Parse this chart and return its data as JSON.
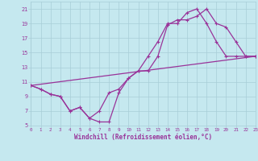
{
  "xlabel": "Windchill (Refroidissement éolien,°C)",
  "bg_color": "#c5e8ef",
  "grid_color": "#a8cdd8",
  "line_color": "#993399",
  "xlim": [
    0,
    23
  ],
  "ylim": [
    5,
    22
  ],
  "yticks": [
    5,
    7,
    9,
    11,
    13,
    15,
    17,
    19,
    21
  ],
  "xticks": [
    0,
    1,
    2,
    3,
    4,
    5,
    6,
    7,
    8,
    9,
    10,
    11,
    12,
    13,
    14,
    15,
    16,
    17,
    18,
    19,
    20,
    21,
    22,
    23
  ],
  "line1_x": [
    0,
    1,
    2,
    3,
    4,
    5,
    6,
    7,
    8,
    9,
    10,
    11,
    12,
    13,
    14,
    15,
    16,
    17,
    18,
    19,
    20,
    21,
    22,
    23
  ],
  "line1_y": [
    10.5,
    10.0,
    9.3,
    9.0,
    7.0,
    7.5,
    6.0,
    5.5,
    5.5,
    9.5,
    11.5,
    12.5,
    12.5,
    14.5,
    18.8,
    19.5,
    19.5,
    20.0,
    21.0,
    19.0,
    18.5,
    16.5,
    14.5,
    14.5
  ],
  "line2_x": [
    0,
    1,
    2,
    3,
    4,
    5,
    6,
    7,
    8,
    9,
    10,
    11,
    12,
    13,
    14,
    15,
    16,
    17,
    18,
    19,
    20,
    21,
    22,
    23
  ],
  "line2_y": [
    10.5,
    10.0,
    9.3,
    9.0,
    7.0,
    7.5,
    6.0,
    7.0,
    9.5,
    10.0,
    11.5,
    12.5,
    14.5,
    16.5,
    19.0,
    19.0,
    20.5,
    21.0,
    19.0,
    16.5,
    14.5,
    14.5,
    14.5,
    14.5
  ],
  "line3_x": [
    0,
    23
  ],
  "line3_y": [
    10.5,
    14.5
  ]
}
